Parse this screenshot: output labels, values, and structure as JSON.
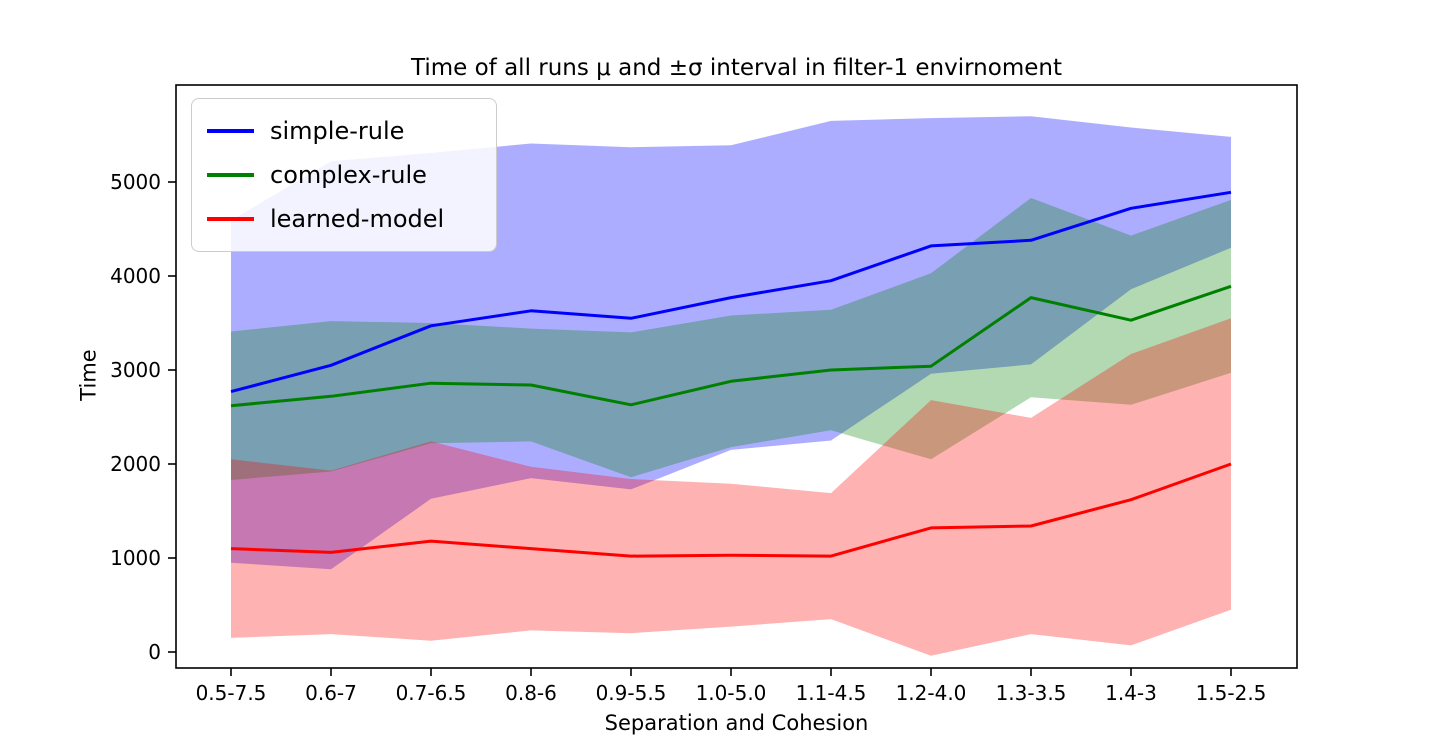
{
  "figure": {
    "title": "Time of all runs μ and ±σ interval in filter-1 envirnoment",
    "xlabel": "Separation and Cohesion",
    "ylabel": "Time"
  },
  "legend": {
    "items": [
      {
        "label": "simple-rule",
        "color": "#0000ff"
      },
      {
        "label": "complex-rule",
        "color": "#008000"
      },
      {
        "label": "learned-model",
        "color": "#ff0000"
      }
    ]
  },
  "chart_data": {
    "type": "line",
    "title": "Time of all runs μ and ±σ interval in filter-1 envirnoment",
    "xlabel": "Separation and Cohesion",
    "ylabel": "Time",
    "categories": [
      "0.5-7.5",
      "0.6-7",
      "0.7-6.5",
      "0.8-6",
      "0.9-5.5",
      "1.0-5.0",
      "1.1-4.5",
      "1.2-4.0",
      "1.3-3.5",
      "1.4-3",
      "1.5-2.5"
    ],
    "yticks": [
      0,
      1000,
      2000,
      3000,
      4000,
      5000
    ],
    "ylim": [
      -170,
      6030
    ],
    "grid": false,
    "legend_position": "upper left",
    "band": "mean ± sigma",
    "series": [
      {
        "name": "simple-rule",
        "color": "#0000ff",
        "band_color": "rgba(0,0,255,0.32)",
        "mean": [
          2770,
          3050,
          3470,
          3630,
          3550,
          3770,
          3950,
          4320,
          4380,
          4720,
          4890
        ],
        "sigma": [
          1820,
          2170,
          1840,
          1780,
          1820,
          1620,
          1700,
          1360,
          1320,
          860,
          590
        ]
      },
      {
        "name": "complex-rule",
        "color": "#008000",
        "band_color": "rgba(0,128,0,0.30)",
        "mean": [
          2620,
          2720,
          2860,
          2840,
          2630,
          2880,
          3000,
          3040,
          3770,
          3530,
          3890
        ],
        "sigma": [
          790,
          800,
          640,
          600,
          770,
          700,
          640,
          990,
          1060,
          900,
          920
        ]
      },
      {
        "name": "learned-model",
        "color": "#ff0000",
        "band_color": "rgba(255,0,0,0.30)",
        "mean": [
          1100,
          1060,
          1180,
          1100,
          1020,
          1030,
          1020,
          1320,
          1340,
          1620,
          2000
        ],
        "sigma": [
          950,
          870,
          1060,
          870,
          820,
          760,
          670,
          1360,
          1150,
          1550,
          1550
        ]
      }
    ]
  }
}
